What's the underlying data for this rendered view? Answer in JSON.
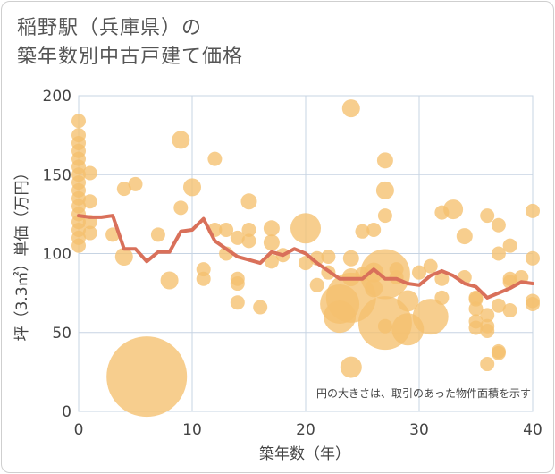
{
  "chart_data": {
    "type": "scatter",
    "title_lines": [
      "稲野駅（兵庫県）の",
      "築年数別中古戸建て価格"
    ],
    "xlabel": "築年数（年）",
    "ylabel": "坪（3.3㎡）単価（万円）",
    "xlim": [
      0,
      40
    ],
    "ylim": [
      0,
      200
    ],
    "xticks": [
      0,
      10,
      20,
      30,
      40
    ],
    "yticks": [
      0,
      50,
      100,
      150,
      200
    ],
    "annotation": "円の大きさは、取引のあった物件面積を示す",
    "grid": true,
    "colors": {
      "bubble": "#f5c06e",
      "line": "#d9705a",
      "grid": "#c7d4e3"
    },
    "bubbles": [
      {
        "x": 0,
        "y": 184,
        "s": 8
      },
      {
        "x": 0,
        "y": 175,
        "s": 8
      },
      {
        "x": 0,
        "y": 170,
        "s": 8
      },
      {
        "x": 0,
        "y": 165,
        "s": 8
      },
      {
        "x": 0,
        "y": 160,
        "s": 8
      },
      {
        "x": 0,
        "y": 155,
        "s": 8
      },
      {
        "x": 0,
        "y": 150,
        "s": 8
      },
      {
        "x": 0,
        "y": 145,
        "s": 8
      },
      {
        "x": 0,
        "y": 140,
        "s": 8
      },
      {
        "x": 0,
        "y": 135,
        "s": 8
      },
      {
        "x": 0,
        "y": 130,
        "s": 8
      },
      {
        "x": 0,
        "y": 125,
        "s": 8
      },
      {
        "x": 0,
        "y": 120,
        "s": 8
      },
      {
        "x": 0,
        "y": 115,
        "s": 8
      },
      {
        "x": 0,
        "y": 110,
        "s": 8
      },
      {
        "x": 0,
        "y": 105,
        "s": 8
      },
      {
        "x": 1,
        "y": 151,
        "s": 8
      },
      {
        "x": 1,
        "y": 133,
        "s": 8
      },
      {
        "x": 1,
        "y": 120,
        "s": 8
      },
      {
        "x": 1,
        "y": 113,
        "s": 8
      },
      {
        "x": 3,
        "y": 112,
        "s": 8
      },
      {
        "x": 4,
        "y": 141,
        "s": 8
      },
      {
        "x": 5,
        "y": 144,
        "s": 8
      },
      {
        "x": 4,
        "y": 98,
        "s": 10
      },
      {
        "x": 6,
        "y": 22,
        "s": 45
      },
      {
        "x": 7,
        "y": 112,
        "s": 8
      },
      {
        "x": 8,
        "y": 83,
        "s": 10
      },
      {
        "x": 9,
        "y": 172,
        "s": 10
      },
      {
        "x": 9,
        "y": 129,
        "s": 8
      },
      {
        "x": 10,
        "y": 142,
        "s": 10
      },
      {
        "x": 11,
        "y": 90,
        "s": 8
      },
      {
        "x": 11,
        "y": 84,
        "s": 8
      },
      {
        "x": 12,
        "y": 160,
        "s": 8
      },
      {
        "x": 12,
        "y": 115,
        "s": 8
      },
      {
        "x": 13,
        "y": 115,
        "s": 8
      },
      {
        "x": 13,
        "y": 100,
        "s": 8
      },
      {
        "x": 14,
        "y": 110,
        "s": 8
      },
      {
        "x": 14,
        "y": 84,
        "s": 8
      },
      {
        "x": 14,
        "y": 81,
        "s": 8
      },
      {
        "x": 14,
        "y": 69,
        "s": 8
      },
      {
        "x": 15,
        "y": 133,
        "s": 9
      },
      {
        "x": 15,
        "y": 115,
        "s": 8
      },
      {
        "x": 15,
        "y": 108,
        "s": 8
      },
      {
        "x": 16,
        "y": 66,
        "s": 8
      },
      {
        "x": 17,
        "y": 116,
        "s": 9
      },
      {
        "x": 17,
        "y": 107,
        "s": 9
      },
      {
        "x": 17,
        "y": 95,
        "s": 8
      },
      {
        "x": 18,
        "y": 99,
        "s": 8
      },
      {
        "x": 20,
        "y": 116,
        "s": 17
      },
      {
        "x": 20,
        "y": 94,
        "s": 8
      },
      {
        "x": 21,
        "y": 97,
        "s": 8
      },
      {
        "x": 21,
        "y": 80,
        "s": 8
      },
      {
        "x": 22,
        "y": 98,
        "s": 8
      },
      {
        "x": 22,
        "y": 88,
        "s": 8
      },
      {
        "x": 23,
        "y": 68,
        "s": 22
      },
      {
        "x": 23,
        "y": 60,
        "s": 18
      },
      {
        "x": 24,
        "y": 192,
        "s": 10
      },
      {
        "x": 24,
        "y": 97,
        "s": 9
      },
      {
        "x": 24,
        "y": 85,
        "s": 10
      },
      {
        "x": 24,
        "y": 72,
        "s": 28
      },
      {
        "x": 24,
        "y": 28,
        "s": 12
      },
      {
        "x": 25,
        "y": 114,
        "s": 8
      },
      {
        "x": 25,
        "y": 87,
        "s": 8
      },
      {
        "x": 26,
        "y": 115,
        "s": 8
      },
      {
        "x": 26,
        "y": 88,
        "s": 11
      },
      {
        "x": 26,
        "y": 78,
        "s": 10
      },
      {
        "x": 27,
        "y": 159,
        "s": 9
      },
      {
        "x": 27,
        "y": 140,
        "s": 10
      },
      {
        "x": 27,
        "y": 124,
        "s": 8
      },
      {
        "x": 27,
        "y": 87,
        "s": 28
      },
      {
        "x": 27,
        "y": 56,
        "s": 30
      },
      {
        "x": 27,
        "y": 54,
        "s": 8
      },
      {
        "x": 28,
        "y": 90,
        "s": 8
      },
      {
        "x": 28,
        "y": 85,
        "s": 8
      },
      {
        "x": 29,
        "y": 52,
        "s": 18
      },
      {
        "x": 29,
        "y": 70,
        "s": 12
      },
      {
        "x": 30,
        "y": 88,
        "s": 8
      },
      {
        "x": 31,
        "y": 92,
        "s": 8
      },
      {
        "x": 31,
        "y": 60,
        "s": 20
      },
      {
        "x": 32,
        "y": 126,
        "s": 8
      },
      {
        "x": 32,
        "y": 84,
        "s": 8
      },
      {
        "x": 32,
        "y": 72,
        "s": 8
      },
      {
        "x": 33,
        "y": 128,
        "s": 11
      },
      {
        "x": 34,
        "y": 111,
        "s": 9
      },
      {
        "x": 34,
        "y": 85,
        "s": 8
      },
      {
        "x": 35,
        "y": 72,
        "s": 8
      },
      {
        "x": 35,
        "y": 71,
        "s": 8
      },
      {
        "x": 35,
        "y": 65,
        "s": 8
      },
      {
        "x": 35,
        "y": 57,
        "s": 8
      },
      {
        "x": 35,
        "y": 53,
        "s": 8
      },
      {
        "x": 36,
        "y": 124,
        "s": 8
      },
      {
        "x": 36,
        "y": 61,
        "s": 8
      },
      {
        "x": 36,
        "y": 54,
        "s": 8
      },
      {
        "x": 36,
        "y": 51,
        "s": 8
      },
      {
        "x": 36,
        "y": 30,
        "s": 8
      },
      {
        "x": 37,
        "y": 118,
        "s": 8
      },
      {
        "x": 37,
        "y": 100,
        "s": 8
      },
      {
        "x": 37,
        "y": 67,
        "s": 8
      },
      {
        "x": 37,
        "y": 38,
        "s": 8
      },
      {
        "x": 37,
        "y": 37,
        "s": 8
      },
      {
        "x": 38,
        "y": 105,
        "s": 8
      },
      {
        "x": 38,
        "y": 84,
        "s": 8
      },
      {
        "x": 38,
        "y": 82,
        "s": 8
      },
      {
        "x": 38,
        "y": 64,
        "s": 8
      },
      {
        "x": 39,
        "y": 85,
        "s": 8
      },
      {
        "x": 40,
        "y": 127,
        "s": 8
      },
      {
        "x": 40,
        "y": 97,
        "s": 8
      },
      {
        "x": 40,
        "y": 70,
        "s": 8
      },
      {
        "x": 40,
        "y": 68,
        "s": 8
      }
    ],
    "trend": {
      "x": [
        0,
        1,
        2,
        3,
        4,
        5,
        6,
        7,
        8,
        9,
        10,
        11,
        12,
        13,
        14,
        15,
        16,
        17,
        18,
        19,
        20,
        21,
        22,
        23,
        24,
        25,
        26,
        27,
        28,
        29,
        30,
        31,
        32,
        33,
        34,
        35,
        36,
        37,
        38,
        39,
        40
      ],
      "y": [
        124,
        123,
        123,
        124,
        103,
        103,
        95,
        101,
        101,
        114,
        115,
        122,
        108,
        103,
        98,
        96,
        94,
        101,
        99,
        103,
        100,
        94,
        89,
        84,
        84,
        84,
        90,
        84,
        84,
        81,
        80,
        86,
        89,
        86,
        81,
        79,
        72,
        75,
        78,
        82,
        81
      ]
    }
  }
}
